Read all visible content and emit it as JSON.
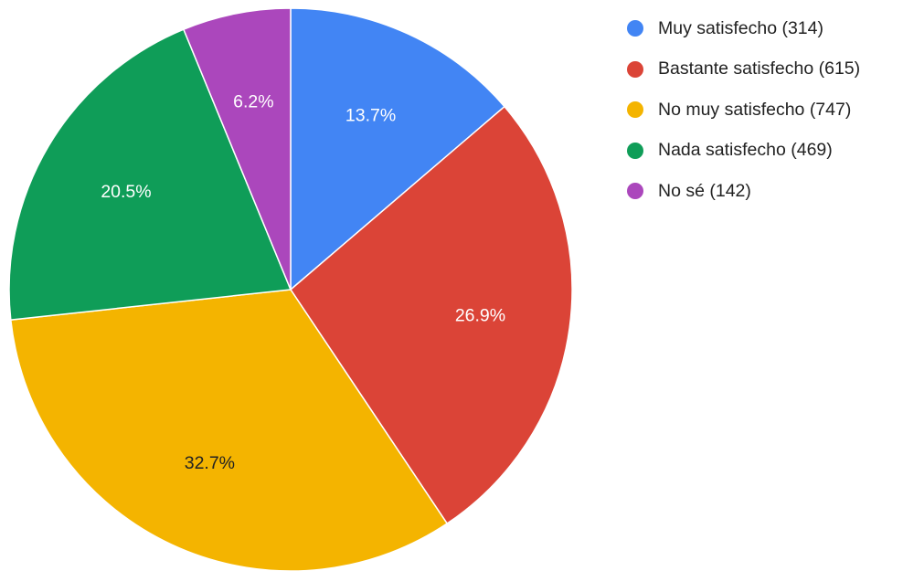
{
  "chart_data": {
    "type": "pie",
    "title": "",
    "legend_position": "right",
    "slices": [
      {
        "label": "Muy satisfecho (314)",
        "value": 314,
        "percent_label": "13.7%",
        "color": "#4285F4",
        "label_color": "#ffffff"
      },
      {
        "label": "Bastante satisfecho (615)",
        "value": 615,
        "percent_label": "26.9%",
        "color": "#DB4437",
        "label_color": "#ffffff"
      },
      {
        "label": "No muy satisfecho (747)",
        "value": 747,
        "percent_label": "32.7%",
        "color": "#F4B400",
        "label_color": "#222222"
      },
      {
        "label": "Nada satisfecho (469)",
        "value": 469,
        "percent_label": "20.5%",
        "color": "#0F9D58",
        "label_color": "#ffffff"
      },
      {
        "label": "No sé (142)",
        "value": 142,
        "percent_label": "6.2%",
        "color": "#AB47BC",
        "label_color": "#ffffff"
      }
    ]
  }
}
